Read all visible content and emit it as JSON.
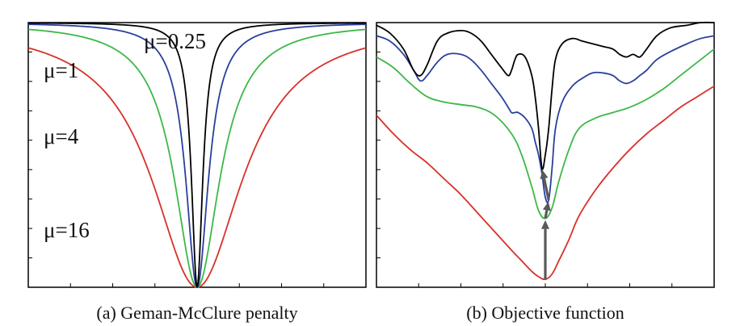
{
  "chart_data": [
    {
      "type": "line",
      "title": "",
      "caption": "(a) Geman-McClure penalty",
      "xlabel": "",
      "ylabel": "",
      "xlim": [
        -1,
        1
      ],
      "ylim": [
        0,
        1
      ],
      "grid": false,
      "series": [
        {
          "name": "μ=0.25",
          "color": "#000000",
          "mu": 0.25,
          "scale": 0.0066
        },
        {
          "name": "μ=1",
          "color": "#2a3f9c",
          "mu": 1,
          "scale": 0.0066
        },
        {
          "name": "μ=4",
          "color": "#3db847",
          "mu": 4,
          "scale": 0.0066
        },
        {
          "name": "μ=16",
          "color": "#d8312a",
          "mu": 16,
          "scale": 0.0066
        }
      ],
      "curve_labels": [
        {
          "text": "μ=0.25",
          "series": 0
        },
        {
          "text": "μ=1",
          "series": 1
        },
        {
          "text": "μ=4",
          "series": 2
        },
        {
          "text": "μ=16",
          "series": 3
        }
      ]
    },
    {
      "type": "line",
      "title": "",
      "caption": "(b) Objective function",
      "xlabel": "",
      "ylabel": "",
      "xlim": [
        0,
        1
      ],
      "ylim": [
        0,
        1
      ],
      "grid": false,
      "minimum_x": 0.5,
      "series": [
        {
          "color": "#000000",
          "x": [
            0,
            0.04,
            0.08,
            0.11,
            0.13,
            0.15,
            0.18,
            0.21,
            0.25,
            0.28,
            0.31,
            0.34,
            0.37,
            0.39,
            0.4,
            0.41,
            0.42,
            0.44,
            0.46,
            0.47,
            0.48,
            0.49,
            0.5,
            0.51,
            0.52,
            0.53,
            0.55,
            0.58,
            0.61,
            0.64,
            0.67,
            0.7,
            0.72,
            0.74,
            0.76,
            0.78,
            0.8,
            0.83,
            0.87,
            0.92,
            0.96,
            1
          ],
          "y": [
            0.99,
            0.96,
            0.9,
            0.82,
            0.8,
            0.84,
            0.93,
            0.96,
            0.97,
            0.96,
            0.93,
            0.88,
            0.83,
            0.8,
            0.82,
            0.86,
            0.88,
            0.87,
            0.8,
            0.72,
            0.6,
            0.45,
            0.5,
            0.6,
            0.75,
            0.86,
            0.92,
            0.94,
            0.93,
            0.92,
            0.91,
            0.9,
            0.88,
            0.87,
            0.88,
            0.87,
            0.9,
            0.95,
            0.98,
            0.99,
            1,
            1
          ]
        },
        {
          "color": "#2a3f9c",
          "x": [
            0,
            0.04,
            0.08,
            0.11,
            0.13,
            0.15,
            0.18,
            0.21,
            0.25,
            0.28,
            0.31,
            0.34,
            0.37,
            0.39,
            0.4,
            0.41,
            0.42,
            0.44,
            0.46,
            0.47,
            0.48,
            0.49,
            0.5,
            0.51,
            0.52,
            0.53,
            0.55,
            0.58,
            0.61,
            0.64,
            0.67,
            0.7,
            0.72,
            0.74,
            0.76,
            0.78,
            0.8,
            0.83,
            0.87,
            0.92,
            0.96,
            1
          ],
          "y": [
            0.95,
            0.93,
            0.88,
            0.82,
            0.78,
            0.8,
            0.85,
            0.88,
            0.88,
            0.86,
            0.82,
            0.77,
            0.72,
            0.68,
            0.66,
            0.66,
            0.66,
            0.64,
            0.6,
            0.55,
            0.5,
            0.43,
            0.34,
            0.33,
            0.45,
            0.6,
            0.7,
            0.76,
            0.79,
            0.81,
            0.81,
            0.8,
            0.78,
            0.77,
            0.78,
            0.8,
            0.82,
            0.86,
            0.89,
            0.92,
            0.94,
            0.95
          ]
        },
        {
          "color": "#3db847",
          "x": [
            0,
            0.05,
            0.1,
            0.15,
            0.2,
            0.25,
            0.3,
            0.35,
            0.4,
            0.43,
            0.46,
            0.48,
            0.5,
            0.52,
            0.54,
            0.57,
            0.6,
            0.65,
            0.7,
            0.75,
            0.8,
            0.85,
            0.9,
            0.95,
            1
          ],
          "y": [
            0.87,
            0.83,
            0.77,
            0.72,
            0.7,
            0.69,
            0.68,
            0.65,
            0.58,
            0.5,
            0.38,
            0.29,
            0.26,
            0.3,
            0.4,
            0.52,
            0.6,
            0.64,
            0.66,
            0.68,
            0.71,
            0.75,
            0.8,
            0.85,
            0.9
          ]
        },
        {
          "color": "#d8312a",
          "x": [
            0,
            0.05,
            0.1,
            0.15,
            0.2,
            0.25,
            0.3,
            0.35,
            0.4,
            0.43,
            0.46,
            0.48,
            0.5,
            0.52,
            0.54,
            0.57,
            0.6,
            0.65,
            0.7,
            0.75,
            0.8,
            0.85,
            0.9,
            0.95,
            1
          ],
          "y": [
            0.65,
            0.58,
            0.52,
            0.47,
            0.41,
            0.35,
            0.28,
            0.21,
            0.14,
            0.1,
            0.06,
            0.04,
            0.03,
            0.05,
            0.1,
            0.18,
            0.27,
            0.37,
            0.45,
            0.52,
            0.58,
            0.63,
            0.68,
            0.72,
            0.76
          ]
        }
      ],
      "arrows": [
        {
          "from": 3,
          "to": 2
        },
        {
          "from": 2,
          "to": 1
        },
        {
          "from": 1,
          "to": 0
        }
      ],
      "arrow_color": "#595959"
    }
  ]
}
